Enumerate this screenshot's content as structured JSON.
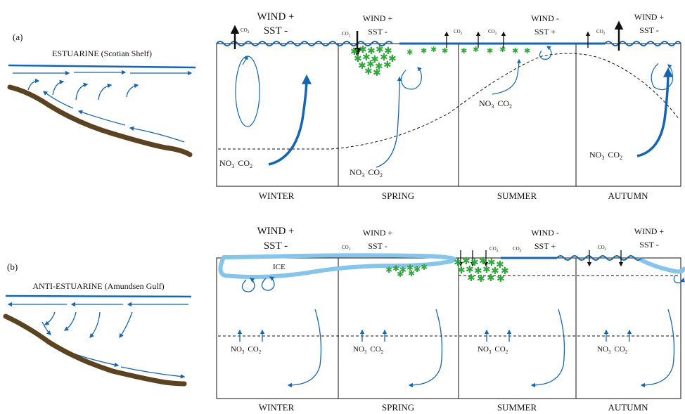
{
  "colors": {
    "current": "#1565b0",
    "ice": "#87c4ea",
    "bloom": "#2fa83a",
    "sediment": "#5b4220",
    "ink": "#111111"
  },
  "panel_a": {
    "label": "(a)",
    "regime": "ESTUARINE (Scotian Shelf)",
    "seasons": [
      "WINTER",
      "SPRING",
      "SUMMER",
      "AUTUMN"
    ],
    "forcing": [
      {
        "wind": "WIND +",
        "sst": "SST -"
      },
      {
        "wind": "WIND +",
        "sst": "SST -"
      },
      {
        "wind": "WIND -",
        "sst": "SST +"
      },
      {
        "wind": "WIND +",
        "sst": "SST -"
      }
    ],
    "co2_label": "CO",
    "co2_sub": "2",
    "nutrients": {
      "no3": "NO",
      "no3_sub": "3",
      "co2": "CO",
      "co2_sub": "2"
    }
  },
  "panel_b": {
    "label": "(b)",
    "regime": "ANTI-ESTUARINE (Amundsen Gulf)",
    "ice_label": "ICE",
    "seasons": [
      "WINTER",
      "SPRING",
      "SUMMER",
      "AUTUMN"
    ],
    "forcing": [
      {
        "wind": "WIND +",
        "sst": "SST -"
      },
      {
        "wind": "WIND +",
        "sst": "SST -"
      },
      {
        "wind": "WIND -",
        "sst": "SST +"
      },
      {
        "wind": "WIND +",
        "sst": "SST -"
      }
    ],
    "co2_label": "CO",
    "co2_sub": "2",
    "nutrients": {
      "no3": "NO",
      "no3_sub": "3",
      "co2": "CO",
      "co2_sub": "2"
    }
  }
}
